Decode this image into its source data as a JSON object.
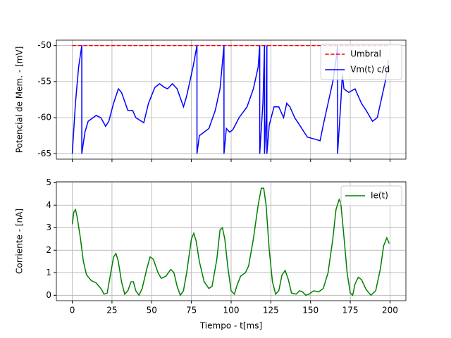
{
  "chart_data": [
    {
      "type": "line",
      "ylabel": "Potencial de Mem. - [mV]",
      "xlim": [
        -10,
        210
      ],
      "ylim": [
        -65.75,
        -49.25
      ],
      "xticks": [
        0,
        25,
        50,
        75,
        100,
        125,
        150,
        175,
        200
      ],
      "yticks": [
        -65,
        -60,
        -55,
        -50
      ],
      "grid": true,
      "legend": "upper right",
      "series": [
        {
          "name": "Umbral",
          "color": "#ff0000",
          "linestyle": "dashed",
          "x": [
            0,
            200
          ],
          "values": [
            -50,
            -50
          ]
        },
        {
          "name": "Vm(t) c/d",
          "color": "#0000ff",
          "linestyle": "solid",
          "x": [
            0,
            2,
            4,
            6,
            6,
            8,
            10,
            15,
            18,
            21,
            23,
            26,
            29,
            31,
            35,
            38,
            40,
            45,
            48,
            52,
            55,
            58,
            60,
            63,
            66,
            70,
            72,
            76,
            78.5,
            78.5,
            80,
            83,
            86,
            90,
            93,
            95.5,
            95.5,
            97,
            99,
            101,
            105,
            110,
            114,
            117,
            118,
            118,
            120,
            121,
            121,
            122,
            122.5,
            122.5,
            124,
            127,
            130,
            133,
            135,
            137,
            140,
            143,
            148,
            153,
            156,
            158,
            161,
            164,
            166,
            167,
            167,
            169,
            170,
            171,
            174,
            178,
            182,
            185,
            189,
            192,
            194,
            197,
            199
          ],
          "values": [
            -65,
            -58,
            -53,
            -50,
            -65,
            -62,
            -60.5,
            -59.7,
            -60,
            -61.2,
            -60.5,
            -58,
            -56,
            -56.5,
            -59,
            -59,
            -60,
            -60.7,
            -58,
            -55.8,
            -55.3,
            -55.8,
            -56,
            -55.3,
            -56,
            -58.5,
            -57,
            -53,
            -50,
            -65,
            -62.5,
            -62,
            -61.5,
            -59,
            -56,
            -50,
            -65,
            -61.5,
            -62,
            -61.7,
            -60,
            -58.5,
            -56,
            -53,
            -50,
            -65,
            -58,
            -50,
            -65,
            -60,
            -50,
            -65,
            -61,
            -58.5,
            -58.5,
            -60,
            -58,
            -58.5,
            -60,
            -61,
            -62.7,
            -63,
            -63.2,
            -61,
            -58,
            -55,
            -52,
            -50,
            -65,
            -58,
            -54,
            -56,
            -56.5,
            -56,
            -58,
            -59,
            -60.5,
            -60,
            -58,
            -55,
            -52
          ]
        }
      ]
    },
    {
      "type": "line",
      "xlabel": "Tiempo - t[ms]",
      "ylabel": "Corriente - [nA]",
      "xlim": [
        -10,
        210
      ],
      "ylim": [
        -0.24,
        5.04
      ],
      "xticks": [
        0,
        25,
        50,
        75,
        100,
        125,
        150,
        175,
        200
      ],
      "yticks": [
        0,
        1,
        2,
        3,
        4,
        5
      ],
      "grid": true,
      "legend": "upper right",
      "series": [
        {
          "name": "Ie(t)",
          "color": "#008000",
          "linestyle": "solid",
          "x": [
            0,
            1,
            2,
            3,
            5,
            7,
            9,
            12,
            15,
            18,
            20,
            22,
            24,
            26,
            27.5,
            29,
            31,
            33,
            35,
            37,
            38.5,
            40,
            42,
            44,
            47,
            49,
            51,
            54,
            56,
            59,
            62,
            64,
            66,
            68,
            70,
            72,
            75,
            76.5,
            78,
            80,
            83,
            86,
            88,
            91,
            93,
            94.5,
            96,
            98,
            100,
            102,
            104,
            106,
            109,
            111,
            114,
            117,
            119,
            120.5,
            122,
            124,
            126,
            128,
            130,
            132,
            134,
            136,
            138,
            141,
            143,
            145,
            147,
            149,
            152,
            155,
            158,
            161,
            164,
            166,
            168,
            169,
            171,
            173,
            175,
            176.5,
            178,
            180,
            182,
            185,
            188,
            191,
            194,
            196,
            198,
            199.5
          ],
          "values": [
            3.15,
            3.7,
            3.8,
            3.5,
            2.6,
            1.5,
            0.9,
            0.65,
            0.55,
            0.3,
            0.05,
            0.1,
            0.9,
            1.7,
            1.85,
            1.5,
            0.6,
            0.05,
            0.2,
            0.6,
            0.6,
            0.2,
            0,
            0.3,
            1.2,
            1.7,
            1.6,
            1.0,
            0.75,
            0.85,
            1.15,
            1.0,
            0.4,
            0,
            0.2,
            1,
            2.5,
            2.75,
            2.4,
            1.5,
            0.6,
            0.3,
            0.4,
            1.6,
            2.9,
            3.0,
            2.5,
            1.2,
            0.2,
            0.05,
            0.5,
            0.85,
            1.0,
            1.3,
            2.5,
            4.0,
            4.75,
            4.75,
            4.0,
            2.0,
            0.6,
            0.05,
            0.2,
            0.9,
            1.1,
            0.7,
            0.1,
            0.05,
            0.2,
            0.15,
            0,
            0.05,
            0.2,
            0.15,
            0.3,
            1.0,
            2.5,
            3.8,
            4.25,
            4.1,
            2.6,
            1.0,
            0.1,
            0,
            0.5,
            0.8,
            0.7,
            0.25,
            0,
            0.2,
            1.2,
            2.2,
            2.55,
            2.3
          ]
        }
      ]
    }
  ]
}
